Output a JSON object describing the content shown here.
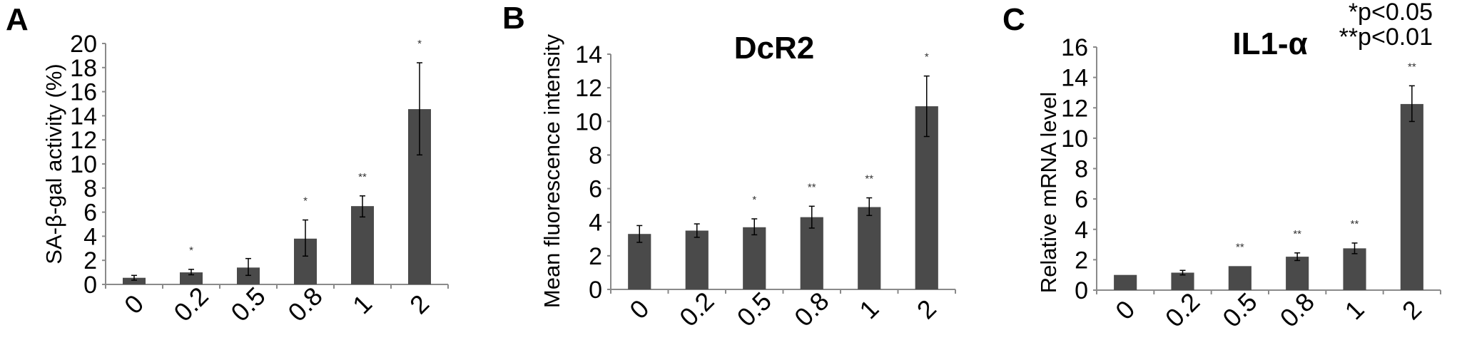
{
  "colors": {
    "bar": "#4a4a4a",
    "axis": "#8a8a8a",
    "error_bar": "#000000"
  },
  "legend": [
    "*p<0.05",
    "**p<0.01"
  ],
  "chart_data": [
    {
      "type": "bar",
      "panel_label": "A",
      "title": "",
      "xlabel": "",
      "ylabel": "SA-β-gal activity (%)",
      "ylim": [
        0,
        20
      ],
      "yticks": [
        "0",
        "2",
        "4",
        "6",
        "8",
        "10",
        "12",
        "14",
        "16",
        "18",
        "20"
      ],
      "categories": [
        "0",
        "0.2",
        "0.5",
        "0.8",
        "1",
        "2"
      ],
      "values": [
        0.55,
        1.0,
        1.4,
        3.8,
        6.5,
        14.55
      ],
      "error_low": [
        0.35,
        0.8,
        0.75,
        2.35,
        5.6,
        10.75
      ],
      "error_high": [
        0.75,
        1.25,
        2.15,
        5.35,
        7.35,
        18.4
      ],
      "significance": [
        "",
        "*",
        "",
        "*",
        "**",
        "*"
      ],
      "grid": false
    },
    {
      "type": "bar",
      "panel_label": "B",
      "title": "DcR2",
      "xlabel": "",
      "ylabel": "Mean fluorescence intensity",
      "ylim": [
        0,
        14
      ],
      "yticks": [
        "0",
        "2",
        "4",
        "6",
        "8",
        "10",
        "12",
        "14"
      ],
      "categories": [
        "0",
        "0.2",
        "0.5",
        "0.8",
        "1",
        "2"
      ],
      "values": [
        3.3,
        3.5,
        3.7,
        4.3,
        4.9,
        10.9
      ],
      "error_low": [
        2.8,
        3.1,
        3.25,
        3.65,
        4.4,
        9.1
      ],
      "error_high": [
        3.8,
        3.9,
        4.2,
        4.95,
        5.45,
        12.7
      ],
      "significance": [
        "",
        "",
        "*",
        "**",
        "**",
        "*"
      ],
      "grid": false
    },
    {
      "type": "bar",
      "panel_label": "C",
      "title": "IL1-α",
      "xlabel": "",
      "ylabel": "Relative mRNA level",
      "ylim": [
        0,
        16
      ],
      "yticks": [
        "0",
        "2",
        "4",
        "6",
        "8",
        "10",
        "12",
        "14",
        "16"
      ],
      "categories": [
        "0",
        "0.2",
        "0.5",
        "0.8",
        "1",
        "2"
      ],
      "values": [
        1.0,
        1.15,
        1.58,
        2.2,
        2.75,
        12.25
      ],
      "error_low": [
        1.0,
        1.0,
        1.58,
        1.95,
        2.4,
        11.1
      ],
      "error_high": [
        1.0,
        1.3,
        1.58,
        2.45,
        3.1,
        13.45
      ],
      "significance": [
        "",
        "",
        "**",
        "**",
        "**",
        "**"
      ],
      "grid": false
    }
  ]
}
